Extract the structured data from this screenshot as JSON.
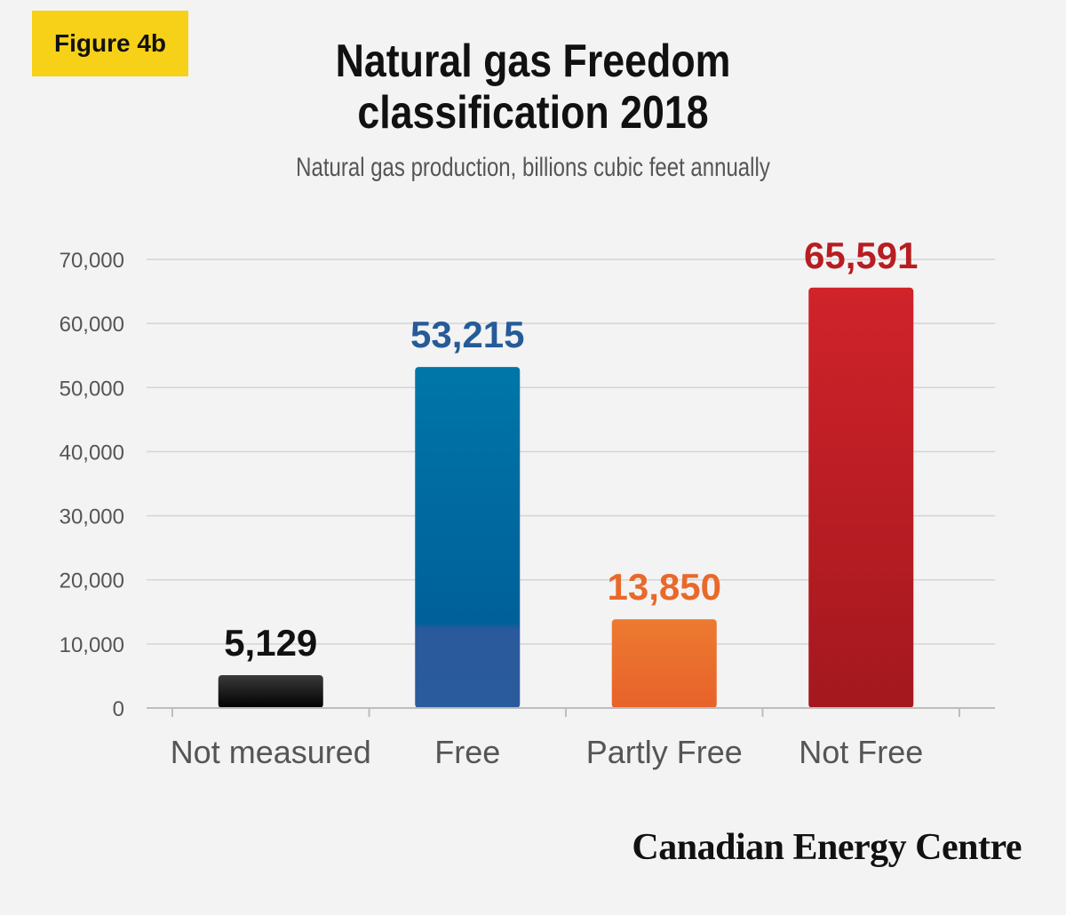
{
  "figure_badge": "Figure 4b",
  "chart_data": {
    "type": "bar",
    "title_lines": [
      "Natural gas Freedom",
      "classification 2018"
    ],
    "subtitle": "Natural gas production, billions cubic feet annually",
    "categories": [
      "Not measured",
      "Free",
      "Partly Free",
      "Not Free"
    ],
    "values": [
      5129,
      53215,
      13850,
      65591
    ],
    "value_labels": [
      "5,129",
      "53,215",
      "13,850",
      "65,591"
    ],
    "bar_colors": [
      "#1a1a1a",
      "#0a6a9e",
      "#e8692a",
      "#b81d22"
    ],
    "label_colors": [
      "#111111",
      "#255b99",
      "#e8692a",
      "#b81d22"
    ],
    "ylim": [
      0,
      70000
    ],
    "yticks": [
      "0",
      "10,000",
      "20,000",
      "30,000",
      "40,000",
      "50,000",
      "60,000",
      "70,000"
    ],
    "ytick_values": [
      0,
      10000,
      20000,
      30000,
      40000,
      50000,
      60000,
      70000
    ],
    "grid": true,
    "xlabel": "",
    "ylabel": ""
  },
  "source": "Canadian Energy Centre"
}
